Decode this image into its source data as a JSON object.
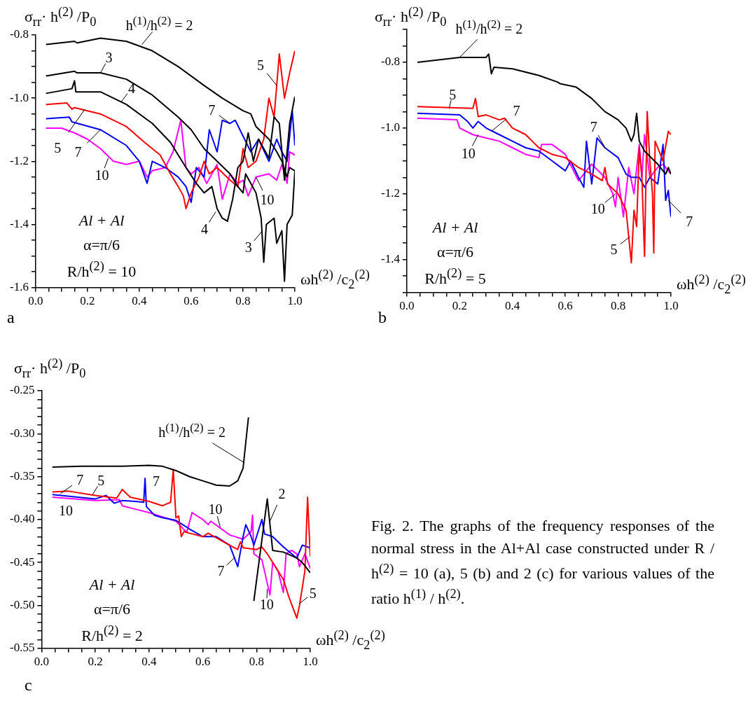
{
  "chart_data": [
    {
      "type": "line",
      "xlabel": "ωh$^{(2)}$ /c$_{2}$$^{(2)}$",
      "ylabel": "σ$_{rr}$· h$^{(2)}$ /P$_{0}$",
      "marker": "none",
      "line_style": "solid",
      "xlim": [
        0,
        1
      ],
      "ylim": [
        -1.6,
        -0.8
      ],
      "xticks": [
        {
          "value": 0,
          "label": "0.0"
        },
        {
          "value": 0.05,
          "label": null
        },
        {
          "value": 0.1,
          "label": null
        },
        {
          "value": 0.15,
          "label": null
        },
        0.2,
        {
          "value": 0.25,
          "label": null
        },
        {
          "value": 0.3,
          "label": null
        },
        {
          "value": 0.35,
          "label": null
        },
        0.4,
        {
          "value": 0.45,
          "label": null
        },
        {
          "value": 0.5,
          "label": null
        },
        {
          "value": 0.55,
          "label": null
        },
        0.6,
        {
          "value": 0.65,
          "label": null
        },
        {
          "value": 0.7,
          "label": null
        },
        {
          "value": 0.75,
          "label": null
        },
        0.8,
        {
          "value": 0.85,
          "label": null
        },
        {
          "value": 0.9,
          "label": null
        },
        {
          "value": 0.95,
          "label": null
        },
        {
          "value": 1,
          "label": "1.0"
        }
      ],
      "yticks": [
        -1.6,
        {
          "value": -1.55,
          "label": null
        },
        {
          "value": -1.5,
          "label": null
        },
        {
          "value": -1.45,
          "label": null
        },
        -1.4,
        {
          "value": -1.35,
          "label": null
        },
        {
          "value": -1.3,
          "label": null
        },
        {
          "value": -1.25,
          "label": null
        },
        -1.2,
        {
          "value": -1.15,
          "label": null
        },
        {
          "value": -1.1,
          "label": null
        },
        {
          "value": -1.05,
          "label": null
        },
        {
          "value": -1,
          "label": "-1.0"
        },
        {
          "value": -0.95,
          "label": null
        },
        {
          "value": -0.9,
          "label": null
        },
        {
          "value": -0.85,
          "label": null
        },
        -0.8
      ],
      "series": [
        {
          "color": "#000000",
          "x": [
            0.04,
            0.15,
            0.16,
            0.25,
            0.35,
            0.45,
            0.55,
            0.65,
            0.72,
            0.8,
            0.83,
            0.85,
            0.9,
            0.93,
            0.95,
            0.97,
            0.98,
            1.0
          ],
          "values": [
            -0.83,
            -0.82,
            -0.825,
            -0.81,
            -0.82,
            -0.85,
            -0.9,
            -0.96,
            -1.0,
            -1.04,
            -1.05,
            -1.09,
            -1.13,
            -1.17,
            -1.2,
            -1.25,
            -1.22,
            -1.23
          ]
        },
        {
          "color": "#000000",
          "x": [
            0.04,
            0.15,
            0.16,
            0.25,
            0.35,
            0.45,
            0.55,
            0.6,
            0.65,
            0.7,
            0.75,
            0.78,
            0.8,
            0.81,
            0.83,
            0.85,
            0.87,
            0.88,
            0.89,
            0.92,
            0.93,
            0.95,
            0.96,
            0.97,
            0.99,
            1.0
          ],
          "values": [
            -0.93,
            -0.915,
            -0.92,
            -0.92,
            -0.94,
            -0.99,
            -1.06,
            -1.1,
            -1.16,
            -1.2,
            -1.24,
            -1.28,
            -1.3,
            -1.24,
            -1.27,
            -1.3,
            -1.38,
            -1.52,
            -1.4,
            -1.38,
            -1.46,
            -1.42,
            -1.58,
            -1.4,
            -1.37,
            -1.23
          ]
        },
        {
          "color": "#000000",
          "x": [
            0.04,
            0.14,
            0.15,
            0.155,
            0.25,
            0.35,
            0.45,
            0.52,
            0.58,
            0.62,
            0.65,
            0.68,
            0.7,
            0.72,
            0.74,
            0.76,
            0.78,
            0.8,
            0.82,
            0.84,
            0.86,
            0.9,
            0.92,
            0.94,
            0.96,
            0.98,
            1.0
          ],
          "values": [
            -0.985,
            -0.97,
            -0.945,
            -0.98,
            -0.98,
            -1.02,
            -1.08,
            -1.14,
            -1.22,
            -1.27,
            -1.3,
            -1.28,
            -1.35,
            -1.38,
            -1.39,
            -1.32,
            -1.22,
            -1.2,
            -1.11,
            -1.2,
            -1.13,
            -1.19,
            -1.06,
            -1.08,
            -1.26,
            -1.08,
            -0.995
          ]
        },
        {
          "color": "#ff0000",
          "x": [
            0.04,
            0.12,
            0.14,
            0.15,
            0.25,
            0.35,
            0.42,
            0.48,
            0.52,
            0.55,
            0.57,
            0.58,
            0.6,
            0.63,
            0.65,
            0.67,
            0.7,
            0.75,
            0.78,
            0.8,
            0.82,
            0.85,
            0.88,
            0.9,
            0.92,
            0.93,
            0.94,
            0.96,
            0.98,
            1.0
          ],
          "values": [
            -1.02,
            -1.015,
            -1.035,
            -1.03,
            -1.05,
            -1.09,
            -1.14,
            -1.18,
            -1.24,
            -1.28,
            -1.31,
            -1.35,
            -1.3,
            -1.25,
            -1.2,
            -1.24,
            -1.22,
            -1.26,
            -1.28,
            -1.16,
            -1.22,
            -1.2,
            -1.13,
            -1.0,
            -1.06,
            -0.96,
            -0.86,
            -1.0,
            -0.92,
            -0.85
          ]
        },
        {
          "color": "#0000ff",
          "x": [
            0.04,
            0.13,
            0.14,
            0.25,
            0.35,
            0.4,
            0.43,
            0.45,
            0.5,
            0.55,
            0.58,
            0.6,
            0.62,
            0.65,
            0.67,
            0.7,
            0.72,
            0.75,
            0.77,
            0.8,
            0.83,
            0.86,
            0.9,
            0.93,
            0.95,
            0.97,
            0.99,
            1.0
          ],
          "values": [
            -1.065,
            -1.06,
            -1.075,
            -1.1,
            -1.15,
            -1.2,
            -1.27,
            -1.2,
            -1.22,
            -1.25,
            -1.28,
            -1.33,
            -1.22,
            -1.25,
            -1.1,
            -1.17,
            -1.07,
            -1.08,
            -1.07,
            -1.12,
            -1.17,
            -1.13,
            -1.2,
            -1.13,
            -1.17,
            -1.2,
            -1.04,
            -1.15
          ]
        },
        {
          "color": "#ff00ff",
          "x": [
            0.04,
            0.1,
            0.15,
            0.2,
            0.25,
            0.3,
            0.35,
            0.4,
            0.43,
            0.45,
            0.5,
            0.53,
            0.56,
            0.58,
            0.6,
            0.63,
            0.66,
            0.7,
            0.72,
            0.75,
            0.78,
            0.8,
            0.82,
            0.85,
            0.9,
            0.93,
            0.95,
            0.97,
            0.98,
            1.0
          ],
          "values": [
            -1.095,
            -1.095,
            -1.11,
            -1.13,
            -1.16,
            -1.2,
            -1.21,
            -1.2,
            -1.25,
            -1.23,
            -1.22,
            -1.17,
            -1.07,
            -1.22,
            -1.24,
            -1.22,
            -1.27,
            -1.21,
            -1.32,
            -1.24,
            -1.27,
            -1.26,
            -1.31,
            -1.25,
            -1.24,
            -1.26,
            -1.21,
            -1.27,
            -1.17,
            -1.18
          ]
        }
      ],
      "annotations": [
        "Al + Al",
        "α=π/6",
        "R/h$^{(2)}$ = 10",
        "a",
        {
          "text": "h$^{(1)}$/h$^{(2)}$ = 2",
          "x": 0.41,
          "y": -0.83
        },
        {
          "text": "3",
          "x": 0.25,
          "y": -0.92
        },
        {
          "text": "4",
          "x": 0.33,
          "y": -1.012
        },
        {
          "text": "5",
          "x": 0.19,
          "y": -1.035
        },
        {
          "text": "7",
          "x": 0.25,
          "y": -1.1
        },
        {
          "text": "10",
          "x": 0.28,
          "y": -1.19
        },
        {
          "text": "5",
          "x": 0.93,
          "y": -0.96
        },
        {
          "text": "7",
          "x": 0.75,
          "y": -1.08
        },
        {
          "text": "10",
          "x": 0.85,
          "y": -1.25
        },
        {
          "text": "4",
          "x": 0.695,
          "y": -1.36
        },
        {
          "text": "3",
          "x": 0.875,
          "y": -1.42
        }
      ]
    },
    {
      "type": "line",
      "xlabel": "ωh$^{(2)}$ /c$_{2}$$^{(2)}$",
      "ylabel": "σ$_{rr}$· h$^{(2)}$ /P$_{0}$",
      "marker": "none",
      "line_style": "solid",
      "xlim": [
        0,
        1
      ],
      "ylim": [
        -1.5,
        -0.7
      ],
      "xticks": [
        {
          "value": 0,
          "label": "0.0"
        },
        {
          "value": 0.05,
          "label": null
        },
        {
          "value": 0.1,
          "label": null
        },
        {
          "value": 0.15,
          "label": null
        },
        0.2,
        {
          "value": 0.25,
          "label": null
        },
        {
          "value": 0.3,
          "label": null
        },
        {
          "value": 0.35,
          "label": null
        },
        0.4,
        {
          "value": 0.45,
          "label": null
        },
        {
          "value": 0.5,
          "label": null
        },
        {
          "value": 0.55,
          "label": null
        },
        0.6,
        {
          "value": 0.65,
          "label": null
        },
        {
          "value": 0.7,
          "label": null
        },
        {
          "value": 0.75,
          "label": null
        },
        0.8,
        {
          "value": 0.85,
          "label": null
        },
        {
          "value": 0.9,
          "label": null
        },
        {
          "value": 0.95,
          "label": null
        },
        {
          "value": 1,
          "label": "1.0"
        }
      ],
      "yticks": [
        {
          "value": -1.5,
          "label": null
        },
        {
          "value": -1.45,
          "label": null
        },
        -1.4,
        {
          "value": -1.35,
          "label": null
        },
        {
          "value": -1.3,
          "label": null
        },
        {
          "value": -1.25,
          "label": null
        },
        -1.2,
        {
          "value": -1.15,
          "label": null
        },
        {
          "value": -1.1,
          "label": null
        },
        {
          "value": -1.05,
          "label": null
        },
        {
          "value": -1,
          "label": "-1.0"
        },
        {
          "value": -0.95,
          "label": null
        },
        {
          "value": -0.9,
          "label": null
        },
        {
          "value": -0.85,
          "label": null
        },
        -0.8,
        {
          "value": -0.75,
          "label": null
        },
        {
          "value": -0.7,
          "label": null
        }
      ],
      "series": [
        {
          "color": "#000000",
          "x": [
            0.04,
            0.2,
            0.3,
            0.31,
            0.32,
            0.33,
            0.4,
            0.5,
            0.57,
            0.58,
            0.64,
            0.7,
            0.75,
            0.8,
            0.83,
            0.85,
            0.86,
            0.87,
            0.88,
            0.9,
            0.95,
            0.98,
            0.99,
            1.0
          ],
          "values": [
            -0.8,
            -0.785,
            -0.785,
            -0.775,
            -0.835,
            -0.815,
            -0.82,
            -0.84,
            -0.86,
            -0.865,
            -0.875,
            -0.91,
            -0.95,
            -0.975,
            -1.0,
            -1.04,
            -1.02,
            -0.955,
            -1.04,
            -1.07,
            -1.11,
            -1.14,
            -1.12,
            -1.14
          ]
        },
        {
          "color": "#ff0000",
          "x": [
            0.04,
            0.25,
            0.26,
            0.27,
            0.3,
            0.35,
            0.37,
            0.4,
            0.45,
            0.5,
            0.55,
            0.6,
            0.65,
            0.7,
            0.74,
            0.75,
            0.76,
            0.8,
            0.83,
            0.85,
            0.86,
            0.87,
            0.88,
            0.89,
            0.9,
            0.91,
            0.92,
            0.93,
            0.935,
            0.94,
            0.97,
            0.99,
            1.0
          ],
          "values": [
            -0.935,
            -0.94,
            -0.91,
            -0.965,
            -0.96,
            -0.975,
            -0.97,
            -1.0,
            -1.02,
            -1.06,
            -1.08,
            -1.09,
            -1.12,
            -1.14,
            -1.16,
            -1.12,
            -1.17,
            -1.2,
            -1.25,
            -1.41,
            -1.25,
            -1.3,
            -1.06,
            -1.15,
            -1.39,
            -0.95,
            -1.1,
            -1.2,
            -1.38,
            -1.04,
            -1.1,
            -1.01,
            -1.02
          ]
        },
        {
          "color": "#0000ff",
          "x": [
            0.04,
            0.2,
            0.23,
            0.25,
            0.27,
            0.3,
            0.35,
            0.4,
            0.45,
            0.5,
            0.55,
            0.6,
            0.62,
            0.65,
            0.67,
            0.68,
            0.7,
            0.72,
            0.75,
            0.8,
            0.83,
            0.85,
            0.88,
            0.9,
            0.92,
            0.95,
            0.97,
            0.98,
            0.99,
            1.0
          ],
          "values": [
            -0.955,
            -0.96,
            -0.98,
            -1.0,
            -0.98,
            -1.0,
            -1.02,
            -1.04,
            -1.06,
            -1.07,
            -1.1,
            -1.13,
            -1.1,
            -1.15,
            -1.18,
            -1.04,
            -1.17,
            -1.03,
            -1.06,
            -1.09,
            -1.14,
            -1.15,
            -1.15,
            -1.18,
            -1.15,
            -1.17,
            -1.05,
            -1.22,
            -1.19,
            -1.27
          ]
        },
        {
          "color": "#ff00ff",
          "x": [
            0.04,
            0.19,
            0.2,
            0.25,
            0.3,
            0.35,
            0.4,
            0.45,
            0.5,
            0.51,
            0.55,
            0.6,
            0.65,
            0.7,
            0.75,
            0.78,
            0.79,
            0.8,
            0.82,
            0.84,
            0.86,
            0.88,
            0.89,
            0.9,
            0.92,
            0.95,
            0.97,
            1.0
          ],
          "values": [
            -0.97,
            -0.975,
            -1.0,
            -1.02,
            -1.03,
            -1.04,
            -1.06,
            -1.08,
            -1.09,
            -1.05,
            -1.05,
            -1.08,
            -1.16,
            -1.11,
            -1.15,
            -1.2,
            -1.24,
            -1.15,
            -1.27,
            -1.12,
            -1.2,
            -1.05,
            -1.15,
            -1.02,
            -1.15,
            -1.12,
            -1.11,
            -1.14
          ]
        }
      ],
      "annotations": [
        "Al + Al",
        "α=π/6",
        "R/h$^{(2)}$ = 5",
        "b",
        {
          "text": "h$^{(1)}$/h$^{(2)}$ = 2",
          "x": 0.2,
          "y": -0.785
        },
        {
          "text": "5",
          "x": 0.16,
          "y": -0.94
        },
        {
          "text": "7",
          "x": 0.32,
          "y": -1.01
        },
        {
          "text": "10",
          "x": 0.27,
          "y": -1.02
        },
        {
          "text": "7",
          "x": 0.75,
          "y": -1.06
        },
        {
          "text": "10",
          "x": 0.79,
          "y": -1.2
        },
        {
          "text": "7",
          "x": 0.99,
          "y": -1.22
        },
        {
          "text": "5",
          "x": 0.845,
          "y": -1.33
        }
      ]
    },
    {
      "type": "line",
      "xlabel": "ωh$^{(2)}$ /c$_{2}$$^{(2)}$",
      "ylabel": "σ$_{rr}$· h$^{(2)}$ /P$_{0}$",
      "marker": "none",
      "line_style": "solid",
      "xlim": [
        0,
        1
      ],
      "ylim": [
        -0.55,
        -0.25
      ],
      "xticks": [
        {
          "value": 0,
          "label": "0.0"
        },
        {
          "value": 0.05,
          "label": null
        },
        {
          "value": 0.1,
          "label": null
        },
        {
          "value": 0.15,
          "label": null
        },
        0.2,
        {
          "value": 0.25,
          "label": null
        },
        {
          "value": 0.3,
          "label": null
        },
        {
          "value": 0.35,
          "label": null
        },
        0.4,
        {
          "value": 0.45,
          "label": null
        },
        {
          "value": 0.5,
          "label": null
        },
        {
          "value": 0.55,
          "label": null
        },
        0.6,
        {
          "value": 0.65,
          "label": null
        },
        {
          "value": 0.7,
          "label": null
        },
        {
          "value": 0.75,
          "label": null
        },
        0.8,
        {
          "value": 0.85,
          "label": null
        },
        {
          "value": 0.9,
          "label": null
        },
        {
          "value": 0.95,
          "label": null
        },
        {
          "value": 1,
          "label": "1.0"
        }
      ],
      "yticks": [
        -0.55,
        {
          "value": -0.54,
          "label": null
        },
        {
          "value": -0.53,
          "label": null
        },
        {
          "value": -0.52,
          "label": null
        },
        {
          "value": -0.51,
          "label": null
        },
        {
          "value": -0.5,
          "label": "-0.50"
        },
        {
          "value": -0.49,
          "label": null
        },
        {
          "value": -0.48,
          "label": null
        },
        {
          "value": -0.47,
          "label": null
        },
        {
          "value": -0.46,
          "label": null
        },
        -0.45,
        {
          "value": -0.44,
          "label": null
        },
        {
          "value": -0.43,
          "label": null
        },
        {
          "value": -0.42,
          "label": null
        },
        {
          "value": -0.41,
          "label": null
        },
        {
          "value": -0.4,
          "label": "-0.40"
        },
        {
          "value": -0.39,
          "label": null
        },
        {
          "value": -0.38,
          "label": null
        },
        {
          "value": -0.37,
          "label": null
        },
        {
          "value": -0.36,
          "label": null
        },
        -0.35,
        {
          "value": -0.34,
          "label": null
        },
        {
          "value": -0.33,
          "label": null
        },
        {
          "value": -0.32,
          "label": null
        },
        {
          "value": -0.31,
          "label": null
        },
        {
          "value": -0.3,
          "label": "-0.30"
        },
        {
          "value": -0.29,
          "label": null
        },
        {
          "value": -0.28,
          "label": null
        },
        {
          "value": -0.27,
          "label": null
        },
        {
          "value": -0.26,
          "label": null
        },
        -0.25
      ],
      "series": [
        {
          "color": "#000000",
          "x": [
            0.04,
            0.15,
            0.3,
            0.4,
            0.45,
            0.5,
            0.55,
            0.6,
            0.65,
            0.7,
            0.73,
            0.75,
            0.76,
            0.77,
            0.78,
            0.79,
            0.84,
            0.86,
            0.9,
            0.95,
            0.97,
            1.0
          ],
          "values": [
            -0.339,
            -0.338,
            -0.338,
            -0.337,
            -0.338,
            -0.343,
            -0.35,
            -0.355,
            -0.36,
            -0.361,
            -0.355,
            -0.34,
            -0.31,
            -0.281,
            null,
            -0.495,
            -0.376,
            -0.436,
            -0.438,
            -0.445,
            -0.45,
            -0.462
          ]
        },
        {
          "color": "#ff0000",
          "x": [
            0.04,
            0.1,
            0.2,
            0.28,
            0.29,
            0.3,
            0.33,
            0.4,
            0.45,
            0.48,
            0.49,
            0.5,
            0.51,
            0.52,
            0.53,
            0.55,
            0.6,
            0.62,
            0.7,
            0.73,
            0.74,
            0.75,
            0.8,
            0.82,
            0.84,
            0.9,
            0.92,
            0.95,
            0.96,
            0.98,
            0.99,
            1.0
          ],
          "values": [
            -0.368,
            -0.367,
            -0.372,
            -0.375,
            -0.37,
            -0.365,
            -0.374,
            -0.379,
            -0.384,
            -0.38,
            -0.342,
            -0.398,
            -0.396,
            -0.42,
            -0.414,
            -0.416,
            -0.42,
            -0.416,
            -0.43,
            -0.435,
            -0.426,
            -0.433,
            -0.435,
            -0.432,
            -0.44,
            -0.47,
            -0.49,
            -0.515,
            -0.5,
            -0.46,
            -0.374,
            -0.443
          ]
        },
        {
          "color": "#0000ff",
          "x": [
            0.04,
            0.2,
            0.24,
            0.27,
            0.3,
            0.35,
            0.38,
            0.385,
            0.39,
            0.42,
            0.45,
            0.5,
            0.55,
            0.6,
            0.65,
            0.7,
            0.73,
            0.75,
            0.76,
            0.78,
            0.79,
            0.82,
            0.83,
            0.86,
            0.9,
            0.95,
            0.97,
            1.0
          ],
          "values": [
            -0.371,
            -0.376,
            -0.372,
            -0.381,
            -0.378,
            -0.379,
            -0.38,
            -0.352,
            -0.385,
            -0.395,
            -0.398,
            -0.401,
            -0.411,
            -0.42,
            -0.42,
            -0.43,
            -0.455,
            -0.42,
            -0.406,
            -0.42,
            -0.43,
            -0.4,
            -0.417,
            -0.42,
            -0.432,
            -0.445,
            -0.43,
            -0.433
          ]
        },
        {
          "color": "#ff00ff",
          "x": [
            0.04,
            0.2,
            0.29,
            0.3,
            0.35,
            0.4,
            0.45,
            0.5,
            0.54,
            0.56,
            0.6,
            0.62,
            0.63,
            0.7,
            0.75,
            0.78,
            0.785,
            0.79,
            0.82,
            0.85,
            0.86,
            0.88,
            0.9,
            0.91,
            0.93,
            0.95,
            0.96,
            0.98,
            1.0
          ],
          "values": [
            -0.374,
            -0.378,
            -0.377,
            -0.384,
            -0.388,
            -0.392,
            -0.397,
            -0.402,
            -0.415,
            -0.392,
            -0.4,
            -0.406,
            -0.402,
            -0.418,
            -0.423,
            -0.414,
            -0.395,
            -0.44,
            -0.447,
            -0.488,
            -0.45,
            -0.46,
            -0.485,
            -0.44,
            -0.436,
            -0.44,
            -0.455,
            -0.44,
            -0.457
          ]
        }
      ],
      "annotations": [
        "Al + Al",
        "α=π/6",
        "R/h$^{(2)}$ = 2",
        "c",
        "Fig. 2. The graphs of the frequency responses of the normal stress in the Al+Al case constructed under R / h$^{(2)}$ = 10 (a), 5 (b) and 2 (c) for various values of the ratio h$^{(1)}$ / h$^{(2)}$.",
        {
          "text": "h$^{(1)}$/h$^{(2)}$ = 2",
          "x": 0.75,
          "y": -0.333
        },
        {
          "text": "7",
          "x": 0.07,
          "y": -0.37
        },
        {
          "text": "5",
          "x": 0.19,
          "y": -0.371
        },
        {
          "text": "7",
          "x": 0.39,
          "y": -0.365
        },
        {
          "text": "10",
          "x": 0.09,
          "y": -0.376
        },
        {
          "text": "10",
          "x": 0.665,
          "y": -0.409
        },
        {
          "text": "2",
          "x": 0.85,
          "y": -0.402
        },
        {
          "text": "7",
          "x": 0.72,
          "y": -0.444
        },
        {
          "text": "10",
          "x": 0.84,
          "y": -0.481
        },
        {
          "text": "5",
          "x": 0.96,
          "y": -0.498
        }
      ]
    }
  ]
}
